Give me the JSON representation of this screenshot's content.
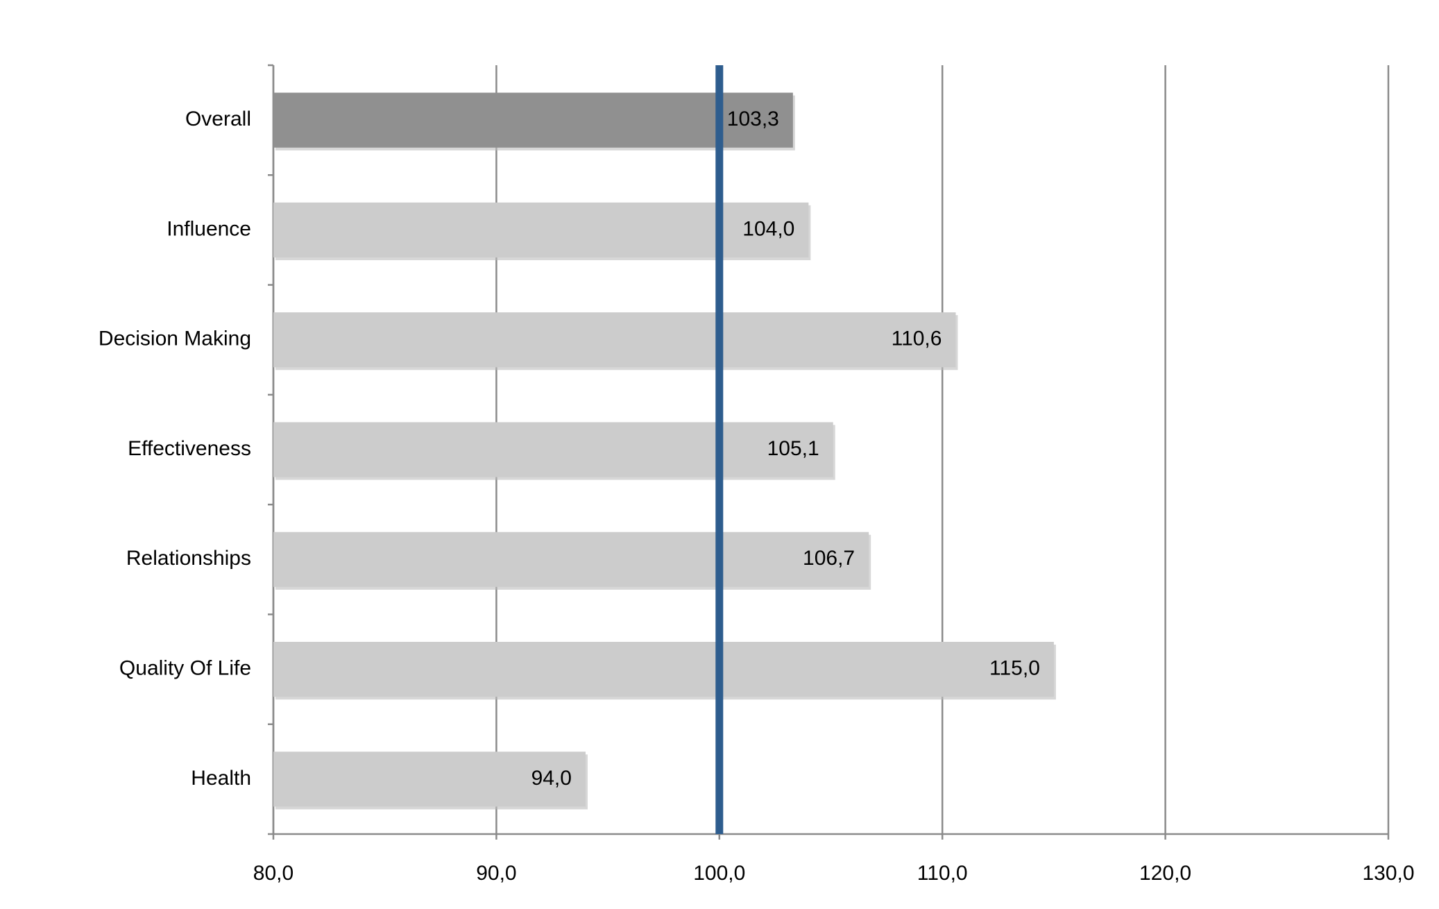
{
  "chart_data": {
    "type": "bar",
    "orientation": "horizontal",
    "categories": [
      "Overall",
      "Influence",
      "Decision Making",
      "Effectiveness",
      "Relationships",
      "Quality Of Life",
      "Health"
    ],
    "values": [
      103.3,
      104.0,
      110.6,
      105.1,
      106.7,
      115.0,
      94.0
    ],
    "value_labels": [
      "103,3",
      "104,0",
      "110,6",
      "105,1",
      "106,7",
      "115,0",
      "94,0"
    ],
    "colors": [
      "#909090",
      "#cccccc",
      "#cccccc",
      "#cccccc",
      "#cccccc",
      "#cccccc",
      "#cccccc"
    ],
    "xlim": [
      80,
      130
    ],
    "xticks": [
      {
        "value": 80,
        "label": "80,0"
      },
      {
        "value": 90,
        "label": "90,0"
      },
      {
        "value": 100,
        "label": "100,0"
      },
      {
        "value": 110,
        "label": "110,0"
      },
      {
        "value": 120,
        "label": "120,0"
      },
      {
        "value": 130,
        "label": "130,0"
      }
    ],
    "grid": true,
    "reference_line": {
      "value": 100,
      "color": "#2e5d8e"
    }
  }
}
